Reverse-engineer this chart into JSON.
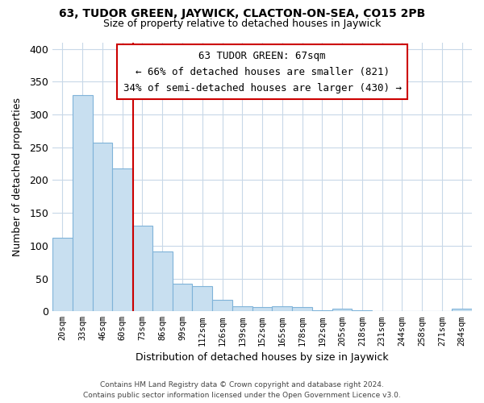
{
  "title": "63, TUDOR GREEN, JAYWICK, CLACTON-ON-SEA, CO15 2PB",
  "subtitle": "Size of property relative to detached houses in Jaywick",
  "xlabel": "Distribution of detached houses by size in Jaywick",
  "ylabel": "Number of detached properties",
  "bar_color": "#c8dff0",
  "bar_edge_color": "#7fb3d9",
  "categories": [
    "20sqm",
    "33sqm",
    "46sqm",
    "60sqm",
    "73sqm",
    "86sqm",
    "99sqm",
    "112sqm",
    "126sqm",
    "139sqm",
    "152sqm",
    "165sqm",
    "178sqm",
    "192sqm",
    "205sqm",
    "218sqm",
    "231sqm",
    "244sqm",
    "258sqm",
    "271sqm",
    "284sqm"
  ],
  "values": [
    112,
    330,
    257,
    218,
    130,
    91,
    42,
    39,
    17,
    8,
    6,
    8,
    6,
    1,
    4,
    1,
    0,
    0,
    0,
    0,
    4
  ],
  "ylim": [
    0,
    410
  ],
  "yticks": [
    0,
    50,
    100,
    150,
    200,
    250,
    300,
    350,
    400
  ],
  "annotation_title": "63 TUDOR GREEN: 67sqm",
  "annotation_line1": "← 66% of detached houses are smaller (821)",
  "annotation_line2": "34% of semi-detached houses are larger (430) →",
  "annotation_box_color": "#ffffff",
  "annotation_box_edge": "#cc0000",
  "red_line_x": 3.54,
  "footer_line1": "Contains HM Land Registry data © Crown copyright and database right 2024.",
  "footer_line2": "Contains public sector information licensed under the Open Government Licence v3.0.",
  "background_color": "#ffffff",
  "grid_color": "#c8d8e8"
}
